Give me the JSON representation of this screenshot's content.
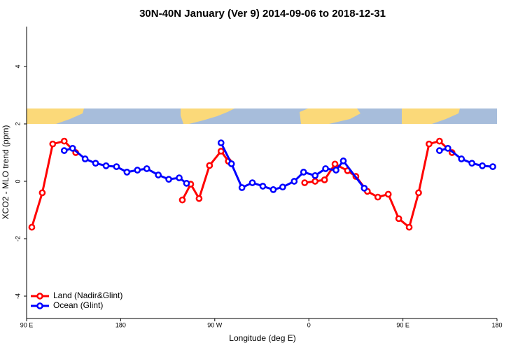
{
  "chart_data": {
    "type": "line",
    "title": "30N-40N January (Ver 9)   2014-09-06 to 2018-12-31",
    "x_label": "Longitude (deg E)",
    "y_label": "XCO2 - MLO trend (ppm)",
    "xlim": [
      90,
      540
    ],
    "ylim": [
      -4.78,
      5.39
    ],
    "xticks": [
      {
        "value": 90,
        "label": "90 E"
      },
      180,
      {
        "value": 270,
        "label": "90 W"
      },
      {
        "value": 360,
        "label": "0"
      },
      {
        "value": 450,
        "label": "90 E"
      },
      {
        "value": 540,
        "label": "180"
      }
    ],
    "yticks": [
      -4,
      -2,
      0,
      2,
      4
    ],
    "legend": "bottom-left",
    "series": [
      {
        "name": "Land (Nadir&Glint)",
        "color": "#ff0000",
        "x": [
          95,
          105,
          115,
          126,
          137,
          null,
          239,
          247,
          255,
          265,
          276,
          283,
          null,
          356,
          366,
          375,
          385,
          397,
          405,
          416,
          426,
          436,
          446,
          456,
          465,
          475,
          485,
          497
        ],
        "values": [
          -1.6,
          -0.4,
          1.3,
          1.4,
          1.0,
          null,
          -0.65,
          -0.1,
          -0.6,
          0.55,
          1.05,
          0.7,
          null,
          -0.05,
          0,
          0.05,
          0.6,
          0.37,
          0.17,
          -0.35,
          -0.55,
          -0.45,
          -1.3,
          -1.6,
          -0.4,
          1.3,
          1.4,
          1.0
        ]
      },
      {
        "name": "Ocean (Glint)",
        "color": "#0000ff",
        "x": [
          126,
          134,
          146,
          156,
          166,
          176,
          186,
          196,
          205,
          216,
          226,
          236,
          243,
          null,
          276,
          286,
          296,
          306,
          316,
          326,
          335,
          346,
          355,
          366,
          376,
          386,
          393,
          413,
          null,
          485,
          493,
          506,
          516,
          526,
          536
        ],
        "values": [
          1.07,
          1.15,
          0.78,
          0.63,
          0.54,
          0.51,
          0.32,
          0.39,
          0.44,
          0.22,
          0.07,
          0.12,
          -0.07,
          null,
          1.34,
          0.61,
          -0.22,
          -0.05,
          -0.17,
          -0.29,
          -0.2,
          0,
          0.32,
          0.2,
          0.44,
          0.39,
          0.71,
          -0.24,
          null,
          1.07,
          1.15,
          0.78,
          0.63,
          0.54,
          0.51
        ]
      }
    ]
  }
}
